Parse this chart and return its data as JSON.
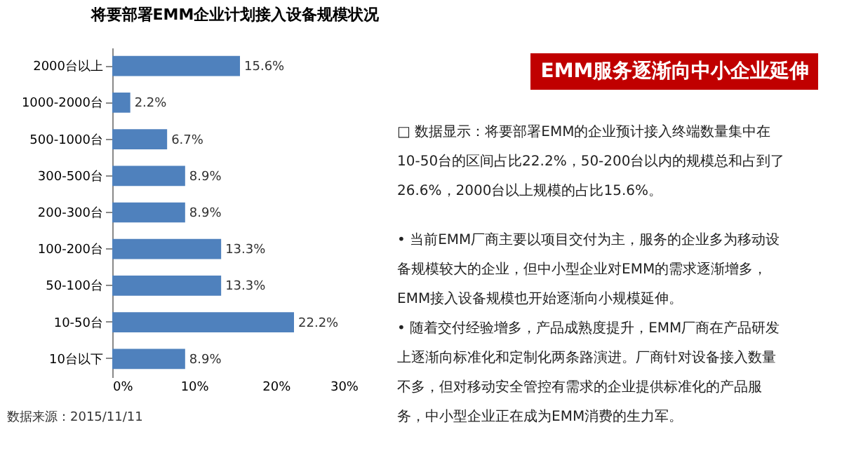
{
  "chart_data": {
    "type": "bar",
    "orientation": "horizontal",
    "title": "将要部署EMM企业计划接入设备规模状况",
    "categories": [
      "2000台以上",
      "1000-2000台",
      "500-1000台",
      "300-500台",
      "200-300台",
      "100-200台",
      "50-100台",
      "10-50台",
      "10台以下"
    ],
    "values": [
      15.6,
      2.2,
      6.7,
      8.9,
      8.9,
      13.3,
      13.3,
      22.2,
      8.9
    ],
    "value_labels": [
      "15.6%",
      "2.2%",
      "6.7%",
      "8.9%",
      "8.9%",
      "13.3%",
      "13.3%",
      "22.2%",
      "8.9%"
    ],
    "color": "#4f81bd",
    "xlim": [
      0,
      30
    ],
    "xticks": [
      {
        "value": 0,
        "label": "0%"
      },
      {
        "value": 10,
        "label": "10%"
      },
      {
        "value": 20,
        "label": "20%"
      },
      {
        "value": 30,
        "label": "30%"
      }
    ],
    "grid": false,
    "annotations": [
      "EMM服务逐渐向中小企业延伸",
      "□ 数据显示：将要部署EMM的企业预计接入终端数量集中在",
      "10-50台的区间占比22.2%，50-200台以内的规模总和占到了",
      "26.6%，2000台以上规模的占比15.6%。",
      "• 当前EMM厂商主要以项目交付为主，服务的企业多为移动设",
      "备规模较大的企业，但中小型企业对EMM的需求逐渐增多，",
      "EMM接入设备规模也开始逐渐向小规模延伸。",
      "• 随着交付经验增多，产品成熟度提升，EMM厂商在产品研发",
      "上逐渐向标准化和定制化两条路演进。厂商针对设备接入数量",
      "不多，但对移动安全管控有需求的企业提供标准化的产品服",
      "务，中小型企业正在成为EMM消费的生力军。",
      "数据来源：2015/11/11"
    ]
  }
}
